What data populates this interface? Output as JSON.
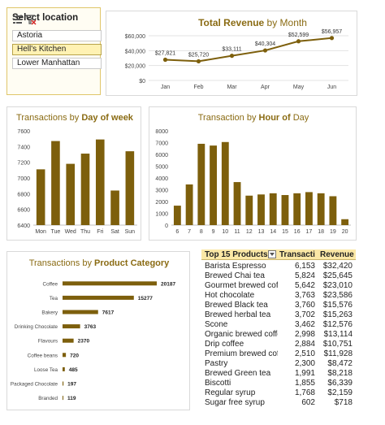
{
  "palette": {
    "bar": "#7d5f0c",
    "line": "#7d5f0c",
    "title": "#8a6b13",
    "axis": "#444444",
    "grid": "#e3e3e3"
  },
  "slicer": {
    "title": "Select location",
    "icons": [
      "multi-select-icon",
      "clear-filter-icon"
    ],
    "items": [
      {
        "label": "Astoria",
        "selected": false
      },
      {
        "label": "Hell's Kitchen",
        "selected": true
      },
      {
        "label": "Lower Manhattan",
        "selected": false
      }
    ]
  },
  "chart_data": [
    {
      "type": "line",
      "title_parts": [
        {
          "text": "Total Revenue",
          "bold": true
        },
        {
          "text": " by Month",
          "bold": false
        }
      ],
      "categories": [
        "Jan",
        "Feb",
        "Mar",
        "Apr",
        "May",
        "Jun"
      ],
      "values": [
        27821,
        25720,
        33111,
        40304,
        52599,
        56957
      ],
      "data_labels": [
        "$27,821",
        "$25,720",
        "$33,111",
        "$40,304",
        "$52,599",
        "$56,957"
      ],
      "ylim": [
        0,
        60000
      ],
      "yticks": [
        0,
        20000,
        40000,
        60000
      ],
      "ytick_labels": [
        "$0",
        "$20,000",
        "$40,000",
        "$60,000"
      ],
      "grid": true
    },
    {
      "type": "bar",
      "title_parts": [
        {
          "text": "Transactions by ",
          "bold": false
        },
        {
          "text": "Day of week",
          "bold": true
        }
      ],
      "categories": [
        "Mon",
        "Tue",
        "Wed",
        "Thu",
        "Fri",
        "Sat",
        "Sun"
      ],
      "values": [
        7110,
        7470,
        7180,
        7310,
        7490,
        6840,
        7340
      ],
      "ylim": [
        6400,
        7600
      ],
      "yticks": [
        6400,
        6600,
        6800,
        7000,
        7200,
        7400,
        7600
      ],
      "ytick_labels": [
        "6400",
        "6600",
        "6800",
        "7000",
        "7200",
        "7400",
        "7600"
      ],
      "grid": false
    },
    {
      "type": "bar",
      "title_parts": [
        {
          "text": "Transaction by ",
          "bold": false
        },
        {
          "text": "Hour of ",
          "bold": true
        },
        {
          "text": " Day",
          "bold": false
        }
      ],
      "categories": [
        "6",
        "7",
        "8",
        "9",
        "10",
        "11",
        "12",
        "13",
        "14",
        "15",
        "16",
        "17",
        "18",
        "19",
        "20"
      ],
      "values": [
        1650,
        3450,
        6900,
        6750,
        7050,
        3650,
        2500,
        2600,
        2700,
        2550,
        2700,
        2800,
        2700,
        2450,
        500
      ],
      "ylim": [
        0,
        8000
      ],
      "yticks": [
        0,
        1000,
        2000,
        3000,
        4000,
        5000,
        6000,
        7000,
        8000
      ],
      "ytick_labels": [
        "0",
        "1000",
        "2000",
        "3000",
        "4000",
        "5000",
        "6000",
        "7000",
        "8000"
      ],
      "grid": false
    },
    {
      "type": "bar",
      "orientation": "horizontal",
      "title_parts": [
        {
          "text": "Transactions by ",
          "bold": false
        },
        {
          "text": "Product Category",
          "bold": true
        }
      ],
      "categories": [
        "Coffee",
        "Tea",
        "Bakery",
        "Drinking Chocolate",
        "Flavours",
        "Coffee beans",
        "Loose Tea",
        "Packaged Chocolate",
        "Branded"
      ],
      "values": [
        20187,
        15277,
        7617,
        3763,
        2370,
        720,
        485,
        197,
        119
      ],
      "data_labels": [
        "20187",
        "15277",
        "7617",
        "3763",
        "2370",
        "720",
        "485",
        "197",
        "119"
      ],
      "grid": false
    }
  ],
  "table": {
    "headers": [
      "Top 15 Products",
      "Transacti",
      "Revenue"
    ],
    "filter_icon": "filter-dropdown-icon",
    "rows": [
      [
        "Barista Espresso",
        "6,153",
        "$32,420"
      ],
      [
        "Brewed Chai tea",
        "5,824",
        "$25,645"
      ],
      [
        "Gourmet brewed coffee",
        "5,642",
        "$23,010"
      ],
      [
        "Hot chocolate",
        "3,763",
        "$23,586"
      ],
      [
        "Brewed Black tea",
        "3,760",
        "$15,576"
      ],
      [
        "Brewed herbal tea",
        "3,702",
        "$15,263"
      ],
      [
        "Scone",
        "3,462",
        "$12,576"
      ],
      [
        "Organic brewed coffee",
        "2,998",
        "$13,114"
      ],
      [
        "Drip coffee",
        "2,884",
        "$10,751"
      ],
      [
        "Premium brewed coffee",
        "2,510",
        "$11,928"
      ],
      [
        "Pastry",
        "2,300",
        "$8,472"
      ],
      [
        "Brewed Green tea",
        "1,991",
        "$8,218"
      ],
      [
        "Biscotti",
        "1,855",
        "$6,339"
      ],
      [
        "Regular syrup",
        "1,768",
        "$2,159"
      ],
      [
        "Sugar free syrup",
        "602",
        "$718"
      ]
    ]
  }
}
